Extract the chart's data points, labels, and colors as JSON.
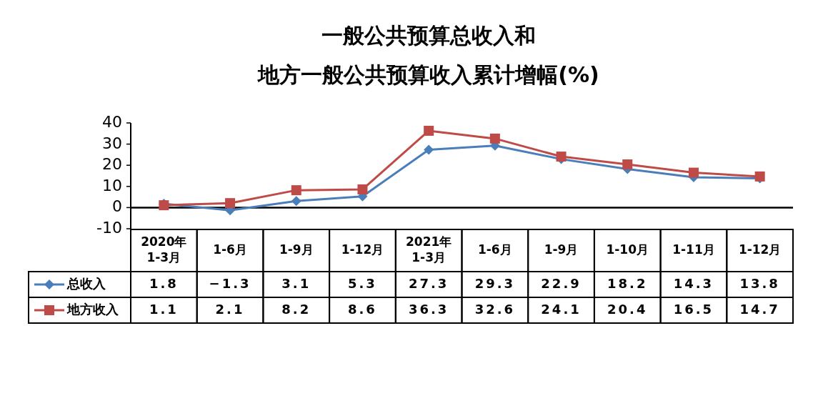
{
  "chart_data": {
    "type": "line",
    "title": "一般公共预算总收入和地方一般公共预算收入累计增幅(%)",
    "categories": [
      "2020年1-3月",
      "1-6月",
      "1-9月",
      "1-12月",
      "2021年1-3月",
      "1-6月",
      "1-9月",
      "1-10月",
      "1-11月",
      "1-12月"
    ],
    "series": [
      {
        "name": "总收入",
        "color": "#4a7ebb",
        "marker": "diamond",
        "values": [
          1.8,
          -1.3,
          3.1,
          5.3,
          27.3,
          29.3,
          22.9,
          18.2,
          14.3,
          13.8
        ]
      },
      {
        "name": "地方收入",
        "color": "#be4b48",
        "marker": "square",
        "values": [
          1.1,
          2.1,
          8.2,
          8.6,
          36.3,
          32.6,
          24.1,
          20.4,
          16.5,
          14.7
        ]
      }
    ],
    "ylim": [
      -10,
      40
    ],
    "yticks": [
      -10,
      0,
      10,
      20,
      30,
      40
    ],
    "data_labels": true,
    "legend": "bottom",
    "grid": false
  }
}
